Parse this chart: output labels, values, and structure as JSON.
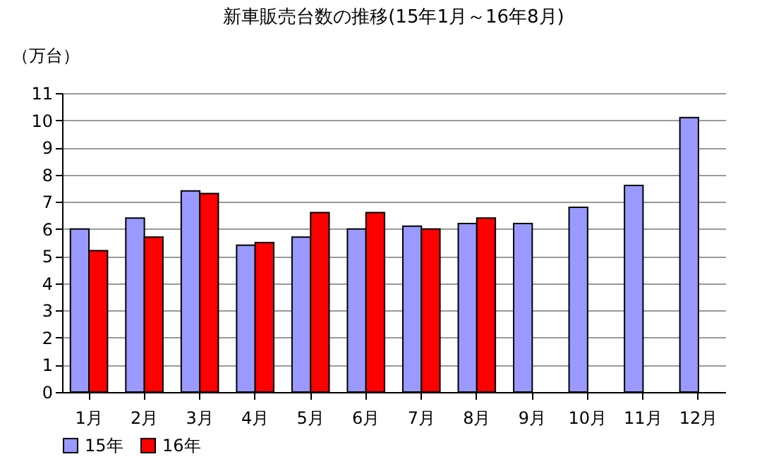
{
  "chart_data": {
    "type": "bar",
    "title": "新車販売台数の推移(15年1月～16年8月)",
    "ylabel": "（万台）",
    "categories": [
      "1月",
      "2月",
      "3月",
      "4月",
      "5月",
      "6月",
      "7月",
      "8月",
      "9月",
      "10月",
      "11月",
      "12月"
    ],
    "series": [
      {
        "name": "15年",
        "color": "#9999ff",
        "values": [
          6.0,
          6.4,
          7.4,
          5.4,
          5.7,
          6.0,
          6.1,
          6.2,
          6.2,
          6.8,
          7.6,
          10.1
        ]
      },
      {
        "name": "16年",
        "color": "#ff0000",
        "values": [
          5.2,
          5.7,
          7.3,
          5.5,
          6.6,
          6.6,
          6.0,
          6.4,
          null,
          null,
          null,
          null
        ]
      }
    ],
    "ylim": [
      0,
      11
    ],
    "yticks": [
      0,
      1,
      2,
      3,
      4,
      5,
      6,
      7,
      8,
      9,
      10,
      11
    ],
    "grid": "y",
    "legend": "bottom"
  }
}
